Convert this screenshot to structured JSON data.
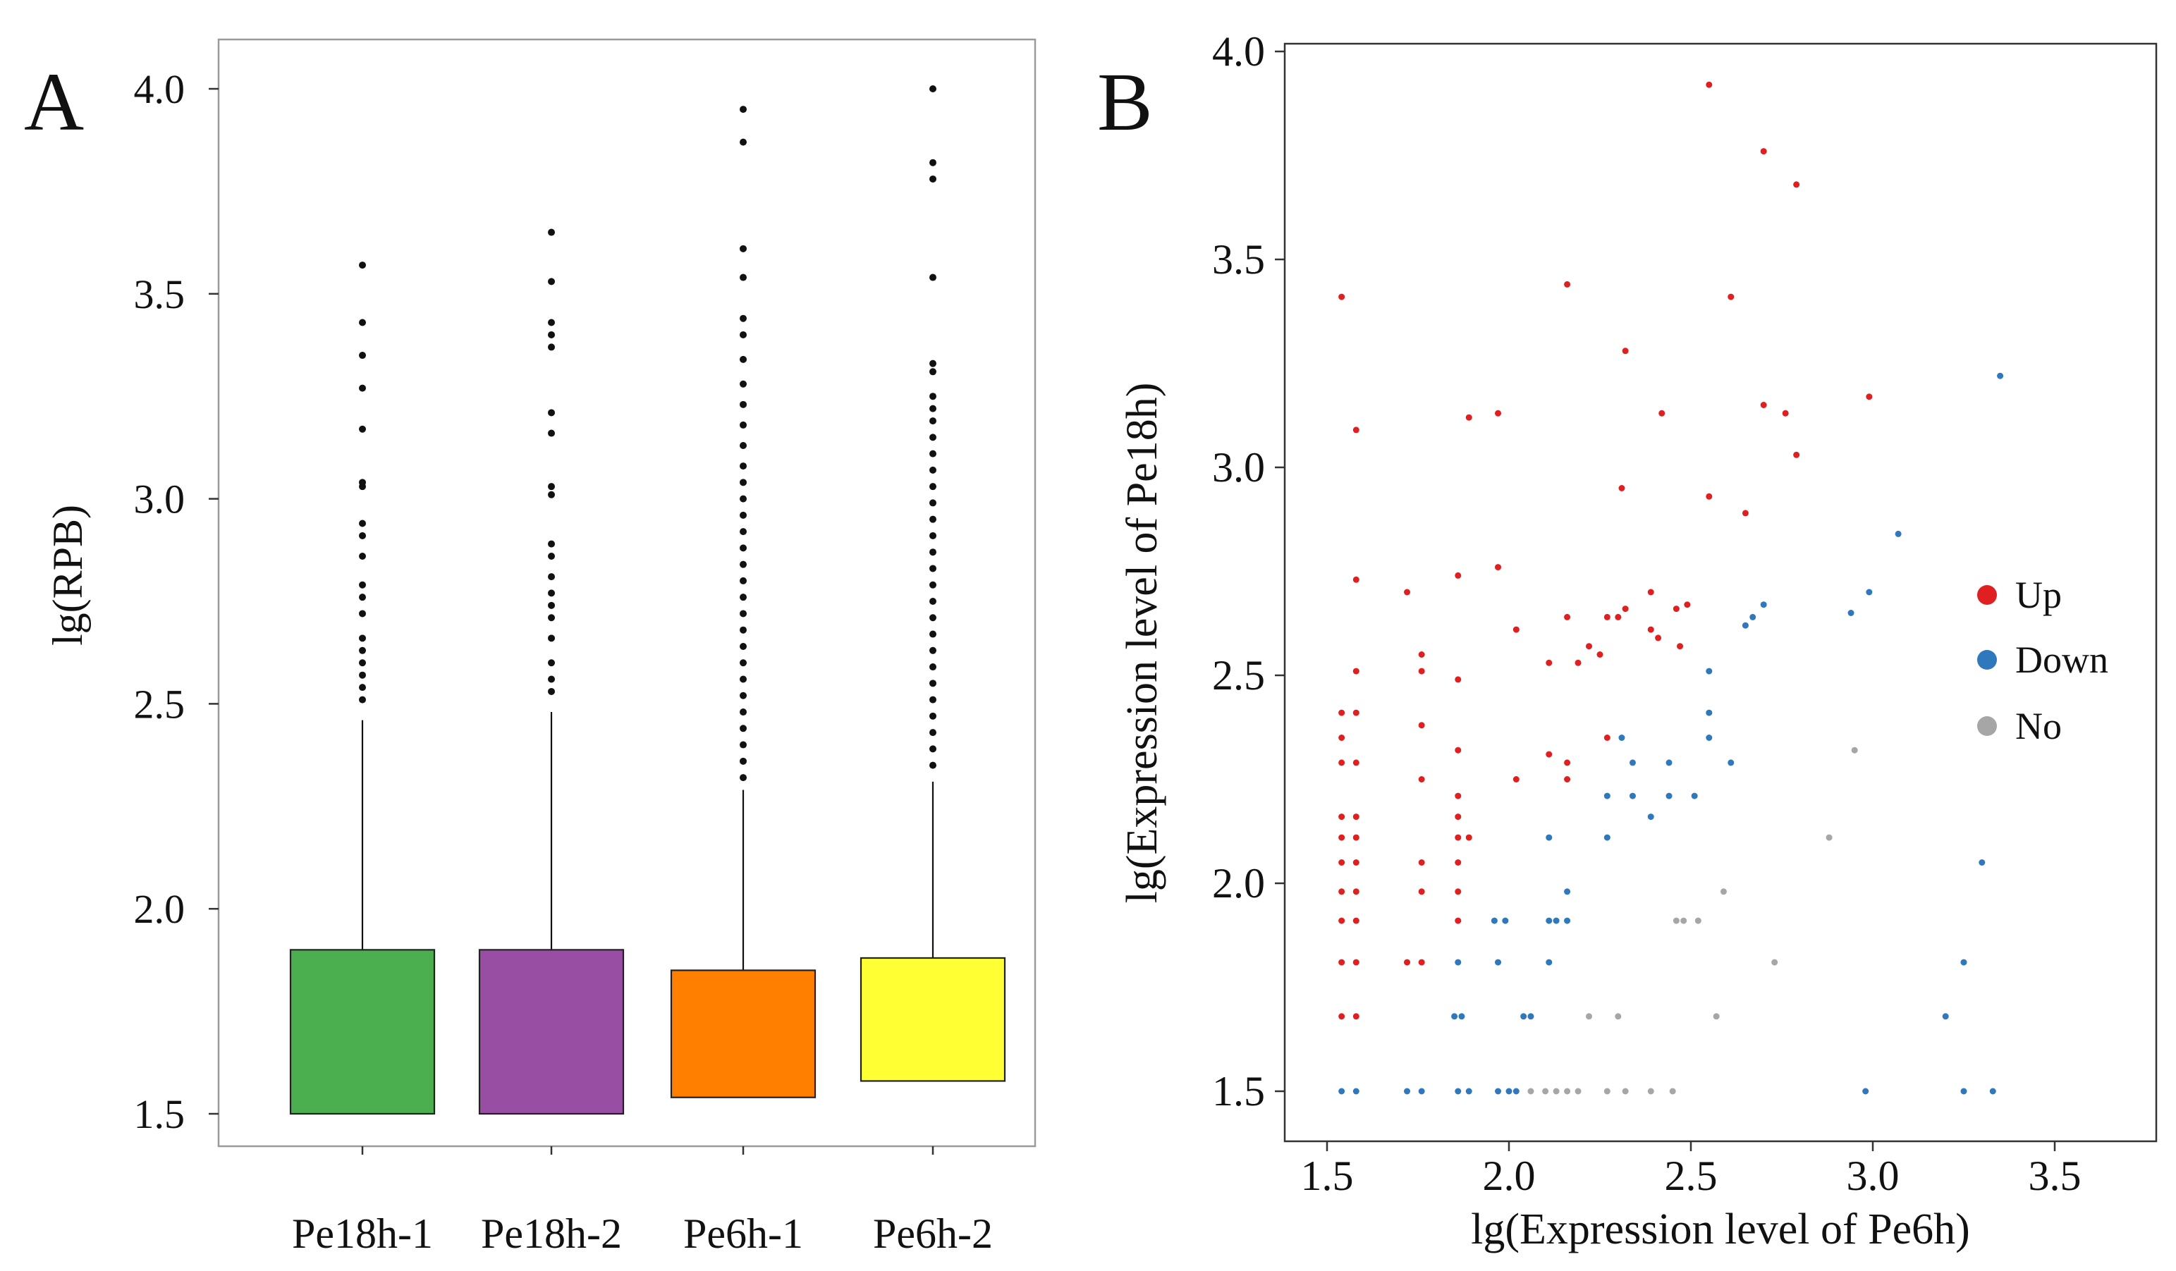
{
  "panels": {
    "a_label": "A",
    "b_label": "B"
  },
  "colors": {
    "up": "#e02020",
    "down": "#2e78bb",
    "no": "#a6a6a6",
    "box_green": "#4bae4f",
    "box_purple": "#984ea3",
    "box_orange": "#ff7f00",
    "box_yellow": "#ffff33"
  },
  "chart_data": [
    {
      "type": "box",
      "title": "",
      "xlabel": "",
      "ylabel": "lg(RPB)",
      "ylim": [
        1.45,
        4.12
      ],
      "yticks": [
        1.5,
        2.0,
        2.5,
        3.0,
        3.5,
        4.0
      ],
      "ytick_labels": [
        "1.5",
        "2.0",
        "2.5",
        "3.0",
        "3.5",
        "4.0"
      ],
      "categories": [
        "Pe18h-1",
        "Pe18h-2",
        "Pe6h-1",
        "Pe6h-2"
      ],
      "boxes": [
        {
          "name": "Pe18h-1",
          "q1": 1.5,
          "q3": 1.9,
          "whisker_high": 2.46,
          "color_key": "box_green",
          "outliers": [
            2.51,
            2.54,
            2.57,
            2.6,
            2.63,
            2.66,
            2.72,
            2.76,
            2.79,
            2.86,
            2.91,
            2.94,
            3.03,
            3.04,
            3.17,
            3.27,
            3.35,
            3.43,
            3.57
          ]
        },
        {
          "name": "Pe18h-2",
          "q1": 1.5,
          "q3": 1.9,
          "whisker_high": 2.48,
          "color_key": "box_purple",
          "outliers": [
            2.53,
            2.56,
            2.6,
            2.66,
            2.71,
            2.74,
            2.77,
            2.81,
            2.86,
            2.89,
            3.01,
            3.03,
            3.16,
            3.21,
            3.37,
            3.4,
            3.43,
            3.53,
            3.65
          ]
        },
        {
          "name": "Pe6h-1",
          "q1": 1.54,
          "q3": 1.85,
          "whisker_high": 2.29,
          "color_key": "box_orange",
          "outliers": [
            2.32,
            2.36,
            2.4,
            2.44,
            2.48,
            2.52,
            2.56,
            2.6,
            2.64,
            2.68,
            2.72,
            2.76,
            2.8,
            2.84,
            2.88,
            2.92,
            2.96,
            3.0,
            3.04,
            3.08,
            3.13,
            3.18,
            3.23,
            3.28,
            3.34,
            3.4,
            3.44,
            3.54,
            3.61,
            3.87,
            3.95
          ]
        },
        {
          "name": "Pe6h-2",
          "q1": 1.58,
          "q3": 1.88,
          "whisker_high": 2.31,
          "color_key": "box_yellow",
          "outliers": [
            2.35,
            2.39,
            2.43,
            2.47,
            2.51,
            2.55,
            2.59,
            2.63,
            2.67,
            2.71,
            2.75,
            2.79,
            2.83,
            2.87,
            2.91,
            2.95,
            2.99,
            3.03,
            3.07,
            3.11,
            3.15,
            3.19,
            3.22,
            3.25,
            3.31,
            3.33,
            3.54,
            3.78,
            3.82,
            4.0
          ]
        }
      ]
    },
    {
      "type": "scatter",
      "title": "",
      "xlabel": "lg(Expression level of Pe6h)",
      "ylabel": "lg(Expression level of Pe18h)",
      "xlim": [
        1.43,
        3.8
      ],
      "ylim": [
        1.42,
        4.01
      ],
      "xticks": [
        1.5,
        2.0,
        2.5,
        3.0,
        3.5
      ],
      "xtick_labels": [
        "1.5",
        "2.0",
        "2.5",
        "3.0",
        "3.5"
      ],
      "yticks": [
        1.5,
        2.0,
        2.5,
        3.0,
        3.5,
        4.0
      ],
      "ytick_labels": [
        "1.5",
        "2.0",
        "2.5",
        "3.0",
        "3.5",
        "4.0"
      ],
      "legend": {
        "placement": "right",
        "entries": [
          {
            "label": "Up",
            "color_key": "up"
          },
          {
            "label": "Down",
            "color_key": "down"
          },
          {
            "label": "No",
            "color_key": "no"
          }
        ]
      },
      "series": [
        {
          "name": "Up",
          "color_key": "up",
          "points": [
            [
              1.54,
              3.41
            ],
            [
              1.58,
              3.09
            ],
            [
              1.58,
              2.73
            ],
            [
              1.58,
              2.51
            ],
            [
              1.54,
              2.41
            ],
            [
              1.58,
              2.41
            ],
            [
              1.54,
              2.35
            ],
            [
              1.54,
              2.29
            ],
            [
              1.58,
              2.29
            ],
            [
              1.54,
              2.16
            ],
            [
              1.58,
              2.16
            ],
            [
              1.54,
              2.11
            ],
            [
              1.58,
              2.11
            ],
            [
              1.54,
              2.05
            ],
            [
              1.58,
              2.05
            ],
            [
              1.54,
              1.98
            ],
            [
              1.58,
              1.98
            ],
            [
              1.54,
              1.91
            ],
            [
              1.58,
              1.91
            ],
            [
              1.54,
              1.81
            ],
            [
              1.58,
              1.81
            ],
            [
              1.54,
              1.68
            ],
            [
              1.58,
              1.68
            ],
            [
              1.72,
              2.7
            ],
            [
              1.76,
              2.55
            ],
            [
              1.76,
              2.51
            ],
            [
              1.76,
              2.38
            ],
            [
              1.76,
              2.25
            ],
            [
              1.76,
              2.05
            ],
            [
              1.76,
              1.98
            ],
            [
              1.72,
              1.81
            ],
            [
              1.76,
              1.81
            ],
            [
              1.86,
              2.74
            ],
            [
              1.86,
              2.49
            ],
            [
              1.86,
              2.32
            ],
            [
              1.86,
              2.21
            ],
            [
              1.86,
              2.16
            ],
            [
              1.86,
              2.11
            ],
            [
              1.89,
              2.11
            ],
            [
              1.86,
              2.05
            ],
            [
              1.86,
              1.98
            ],
            [
              1.86,
              1.91
            ],
            [
              1.89,
              3.12
            ],
            [
              1.97,
              3.13
            ],
            [
              1.97,
              2.76
            ],
            [
              2.02,
              2.61
            ],
            [
              2.02,
              2.25
            ],
            [
              2.11,
              2.53
            ],
            [
              2.11,
              2.31
            ],
            [
              2.16,
              3.44
            ],
            [
              2.16,
              2.64
            ],
            [
              2.16,
              2.29
            ],
            [
              2.16,
              2.25
            ],
            [
              2.19,
              2.53
            ],
            [
              2.22,
              2.57
            ],
            [
              2.25,
              2.55
            ],
            [
              2.27,
              2.64
            ],
            [
              2.27,
              2.35
            ],
            [
              2.3,
              2.64
            ],
            [
              2.32,
              2.66
            ],
            [
              2.31,
              2.95
            ],
            [
              2.32,
              3.28
            ],
            [
              2.39,
              2.7
            ],
            [
              2.39,
              2.61
            ],
            [
              2.41,
              2.59
            ],
            [
              2.42,
              3.13
            ],
            [
              2.46,
              2.66
            ],
            [
              2.47,
              2.57
            ],
            [
              2.49,
              2.67
            ],
            [
              2.55,
              3.92
            ],
            [
              2.55,
              2.93
            ],
            [
              2.61,
              3.41
            ],
            [
              2.65,
              2.89
            ],
            [
              2.7,
              3.76
            ],
            [
              2.7,
              3.15
            ],
            [
              2.76,
              3.13
            ],
            [
              2.79,
              3.68
            ],
            [
              2.79,
              3.03
            ],
            [
              2.99,
              3.17
            ]
          ]
        },
        {
          "name": "Down",
          "color_key": "down",
          "points": [
            [
              1.54,
              1.5
            ],
            [
              1.58,
              1.5
            ],
            [
              1.72,
              1.5
            ],
            [
              1.76,
              1.5
            ],
            [
              1.86,
              1.5
            ],
            [
              1.89,
              1.5
            ],
            [
              1.97,
              1.5
            ],
            [
              2.0,
              1.5
            ],
            [
              2.02,
              1.5
            ],
            [
              1.86,
              1.81
            ],
            [
              1.97,
              1.81
            ],
            [
              2.11,
              1.81
            ],
            [
              1.85,
              1.68
            ],
            [
              1.87,
              1.68
            ],
            [
              2.04,
              1.68
            ],
            [
              2.06,
              1.68
            ],
            [
              1.96,
              1.91
            ],
            [
              1.99,
              1.91
            ],
            [
              2.11,
              1.91
            ],
            [
              2.13,
              1.91
            ],
            [
              2.16,
              1.91
            ],
            [
              2.16,
              1.98
            ],
            [
              2.11,
              2.11
            ],
            [
              2.27,
              2.11
            ],
            [
              2.27,
              2.21
            ],
            [
              2.34,
              2.21
            ],
            [
              2.39,
              2.16
            ],
            [
              2.44,
              2.21
            ],
            [
              2.51,
              2.21
            ],
            [
              2.34,
              2.29
            ],
            [
              2.44,
              2.29
            ],
            [
              2.31,
              2.35
            ],
            [
              2.55,
              2.35
            ],
            [
              2.55,
              2.41
            ],
            [
              2.55,
              2.51
            ],
            [
              2.61,
              2.29
            ],
            [
              2.65,
              2.62
            ],
            [
              2.67,
              2.64
            ],
            [
              2.7,
              2.67
            ],
            [
              2.94,
              2.65
            ],
            [
              2.99,
              2.7
            ],
            [
              3.07,
              2.84
            ],
            [
              3.35,
              3.22
            ],
            [
              3.3,
              2.05
            ],
            [
              3.25,
              1.81
            ],
            [
              3.2,
              1.68
            ],
            [
              2.98,
              1.5
            ],
            [
              3.25,
              1.5
            ],
            [
              3.33,
              1.5
            ]
          ]
        },
        {
          "name": "No",
          "color_key": "no",
          "points": [
            [
              2.06,
              1.5
            ],
            [
              2.1,
              1.5
            ],
            [
              2.13,
              1.5
            ],
            [
              2.16,
              1.5
            ],
            [
              2.19,
              1.5
            ],
            [
              2.27,
              1.5
            ],
            [
              2.32,
              1.5
            ],
            [
              2.39,
              1.5
            ],
            [
              2.45,
              1.5
            ],
            [
              2.22,
              1.68
            ],
            [
              2.3,
              1.68
            ],
            [
              2.57,
              1.68
            ],
            [
              2.46,
              1.91
            ],
            [
              2.48,
              1.91
            ],
            [
              2.52,
              1.91
            ],
            [
              2.59,
              1.98
            ],
            [
              2.73,
              1.81
            ],
            [
              2.88,
              2.11
            ],
            [
              2.95,
              2.32
            ]
          ]
        }
      ]
    }
  ]
}
